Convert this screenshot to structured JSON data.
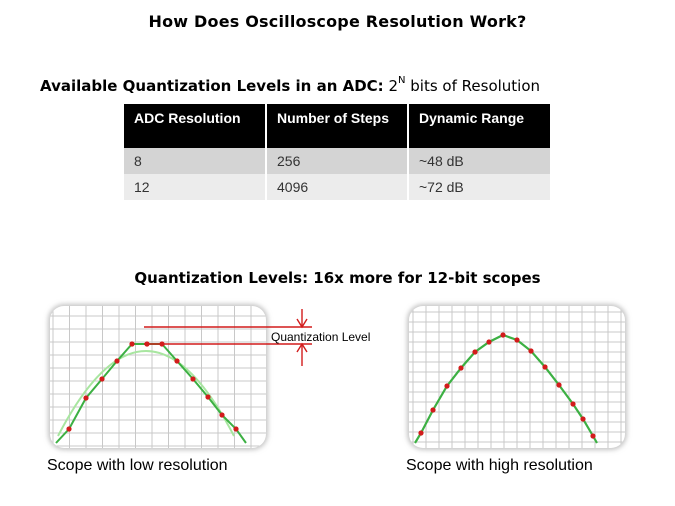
{
  "slide": {
    "title": "How Does Oscilloscope Resolution Work?",
    "subtitle_bold": "Available Quantization Levels in an ADC:",
    "subtitle_base": "2",
    "subtitle_sup": "N",
    "subtitle_rest": " bits of Resolution"
  },
  "table": {
    "headers": [
      "ADC Resolution",
      "Number of Steps",
      "Dynamic Range"
    ],
    "rows": [
      [
        "8",
        "256",
        "~48 dB"
      ],
      [
        "12",
        "4096",
        "~72 dB"
      ]
    ]
  },
  "quantization": {
    "title": "Quantization Levels: 16x more for 12-bit scopes",
    "level_label": "Quantization Level"
  },
  "scopes": {
    "low_caption": "Scope with low resolution",
    "high_caption": "Scope with high resolution"
  },
  "colors": {
    "trace": "#3cb043",
    "ideal_trace": "#a8e6a0",
    "sample_dot": "#d21c1c",
    "marker": "#d21c1c",
    "grid": "#c8c8c8"
  }
}
